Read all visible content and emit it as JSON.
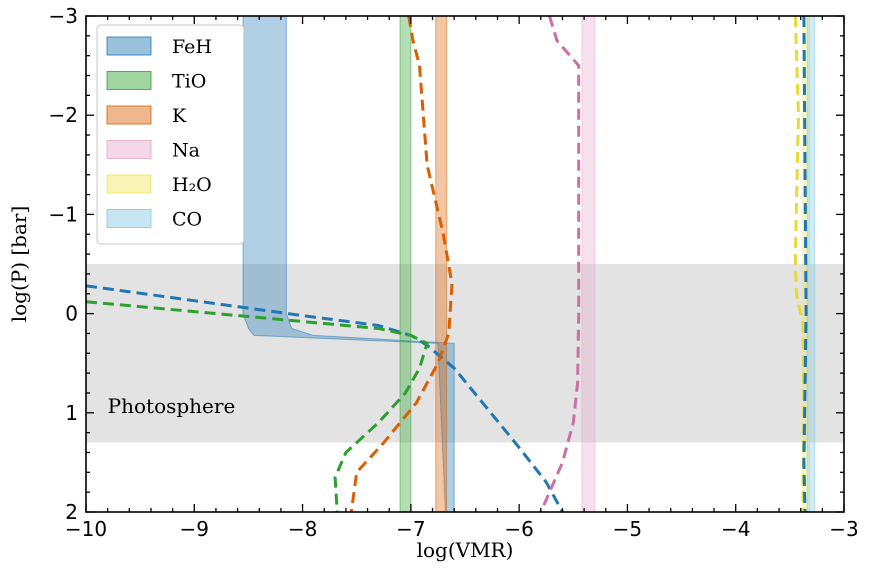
{
  "chart_data": {
    "type": "area",
    "title": "",
    "xlabel": "log(VMR)",
    "ylabel": "log(P) [bar]",
    "xlim": [
      -10,
      -3
    ],
    "ylim": [
      2,
      -3
    ],
    "y_inverted": true,
    "x_ticks": [
      -10,
      -9,
      -8,
      -7,
      -6,
      -5,
      -4,
      -3
    ],
    "x_tick_labels": [
      "−10",
      "−9",
      "−8",
      "−7",
      "−6",
      "−5",
      "−4",
      "−3"
    ],
    "y_ticks": [
      -3,
      -2,
      -1,
      0,
      1,
      2
    ],
    "y_tick_labels": [
      "−3",
      "−2",
      "−1",
      "0",
      "1",
      "2"
    ],
    "grid": false,
    "legend_position": "top-left",
    "photosphere": {
      "label": "Photosphere",
      "y_range": [
        -0.5,
        1.3
      ],
      "color": "#d9d9d9"
    },
    "series": [
      {
        "name": "FeH",
        "color": "#1f77b4",
        "band": [
          {
            "y": -3,
            "xmin": -8.55,
            "xmax": -8.15
          },
          {
            "y": 0.0,
            "xmin": -8.55,
            "xmax": -8.15
          },
          {
            "y": 0.15,
            "xmin": -8.5,
            "xmax": -8.1
          },
          {
            "y": 0.22,
            "xmin": -8.45,
            "xmax": -7.9
          },
          {
            "y": 0.3,
            "xmin": -6.75,
            "xmax": -6.6
          },
          {
            "y": 2,
            "xmin": -6.68,
            "xmax": -6.6
          }
        ],
        "profile": [
          {
            "x": -10.0,
            "y": -0.28
          },
          {
            "x": -9.0,
            "y": -0.13
          },
          {
            "x": -8.0,
            "y": 0.02
          },
          {
            "x": -7.3,
            "y": 0.12
          },
          {
            "x": -7.0,
            "y": 0.22
          },
          {
            "x": -6.85,
            "y": 0.32
          },
          {
            "x": -6.6,
            "y": 0.55
          },
          {
            "x": -6.3,
            "y": 0.95
          },
          {
            "x": -6.0,
            "y": 1.35
          },
          {
            "x": -5.75,
            "y": 1.7
          },
          {
            "x": -5.6,
            "y": 2.0
          }
        ]
      },
      {
        "name": "TiO",
        "color": "#2ca02c",
        "band": [
          {
            "y": -3,
            "xmin": -7.1,
            "xmax": -7.0
          },
          {
            "y": 2,
            "xmin": -7.1,
            "xmax": -7.0
          }
        ],
        "profile": [
          {
            "x": -10.0,
            "y": -0.12
          },
          {
            "x": -9.0,
            "y": -0.02
          },
          {
            "x": -8.0,
            "y": 0.08
          },
          {
            "x": -7.3,
            "y": 0.15
          },
          {
            "x": -7.0,
            "y": 0.22
          },
          {
            "x": -6.85,
            "y": 0.3
          },
          {
            "x": -6.92,
            "y": 0.55
          },
          {
            "x": -7.05,
            "y": 0.8
          },
          {
            "x": -7.3,
            "y": 1.1
          },
          {
            "x": -7.6,
            "y": 1.4
          },
          {
            "x": -7.7,
            "y": 1.65
          },
          {
            "x": -7.68,
            "y": 2.0
          }
        ]
      },
      {
        "name": "K",
        "color": "#d95f02",
        "band": [
          {
            "y": -3,
            "xmin": -6.77,
            "xmax": -6.67
          },
          {
            "y": 2,
            "xmin": -6.77,
            "xmax": -6.67
          }
        ],
        "profile": [
          {
            "x": -7.02,
            "y": -3.0
          },
          {
            "x": -6.98,
            "y": -2.75
          },
          {
            "x": -6.92,
            "y": -2.5
          },
          {
            "x": -6.85,
            "y": -1.5
          },
          {
            "x": -6.7,
            "y": -0.8
          },
          {
            "x": -6.62,
            "y": -0.3
          },
          {
            "x": -6.65,
            "y": 0.2
          },
          {
            "x": -6.75,
            "y": 0.5
          },
          {
            "x": -6.95,
            "y": 0.9
          },
          {
            "x": -7.25,
            "y": 1.3
          },
          {
            "x": -7.5,
            "y": 1.6
          },
          {
            "x": -7.55,
            "y": 2.0
          }
        ]
      },
      {
        "name": "Na",
        "color": "#e7a8c8",
        "line_color": "#cc6fa6",
        "band": [
          {
            "y": -3,
            "xmin": -5.42,
            "xmax": -5.3
          },
          {
            "y": 2,
            "xmin": -5.42,
            "xmax": -5.3
          }
        ],
        "profile": [
          {
            "x": -5.72,
            "y": -3.0
          },
          {
            "x": -5.65,
            "y": -2.75
          },
          {
            "x": -5.45,
            "y": -2.5
          },
          {
            "x": -5.45,
            "y": -1.5
          },
          {
            "x": -5.45,
            "y": 0.0
          },
          {
            "x": -5.46,
            "y": 0.7
          },
          {
            "x": -5.5,
            "y": 1.1
          },
          {
            "x": -5.6,
            "y": 1.5
          },
          {
            "x": -5.72,
            "y": 1.8
          },
          {
            "x": -5.8,
            "y": 2.0
          }
        ]
      },
      {
        "name": "H₂O",
        "color": "#f2e45c",
        "line_color": "#e8d93a",
        "band": [
          {
            "y": -3,
            "xmin": -3.38,
            "xmax": -3.32
          },
          {
            "y": 2,
            "xmin": -3.38,
            "xmax": -3.32
          }
        ],
        "profile": [
          {
            "x": -3.45,
            "y": -3.0
          },
          {
            "x": -3.42,
            "y": -2.0
          },
          {
            "x": -3.45,
            "y": -0.6
          },
          {
            "x": -3.44,
            "y": -0.2
          },
          {
            "x": -3.38,
            "y": 0.1
          },
          {
            "x": -3.37,
            "y": 1.0
          },
          {
            "x": -3.38,
            "y": 2.0
          }
        ]
      },
      {
        "name": "CO",
        "color": "#7ec8e3",
        "line_color": "#1f77b4",
        "band": [
          {
            "y": -3,
            "xmin": -3.34,
            "xmax": -3.27
          },
          {
            "y": 2,
            "xmin": -3.34,
            "xmax": -3.27
          }
        ],
        "profile": [
          {
            "x": -3.37,
            "y": -3.0
          },
          {
            "x": -3.36,
            "y": -1.5
          },
          {
            "x": -3.35,
            "y": 0.0
          },
          {
            "x": -3.37,
            "y": 1.5
          },
          {
            "x": -3.36,
            "y": 2.0
          }
        ]
      }
    ]
  }
}
